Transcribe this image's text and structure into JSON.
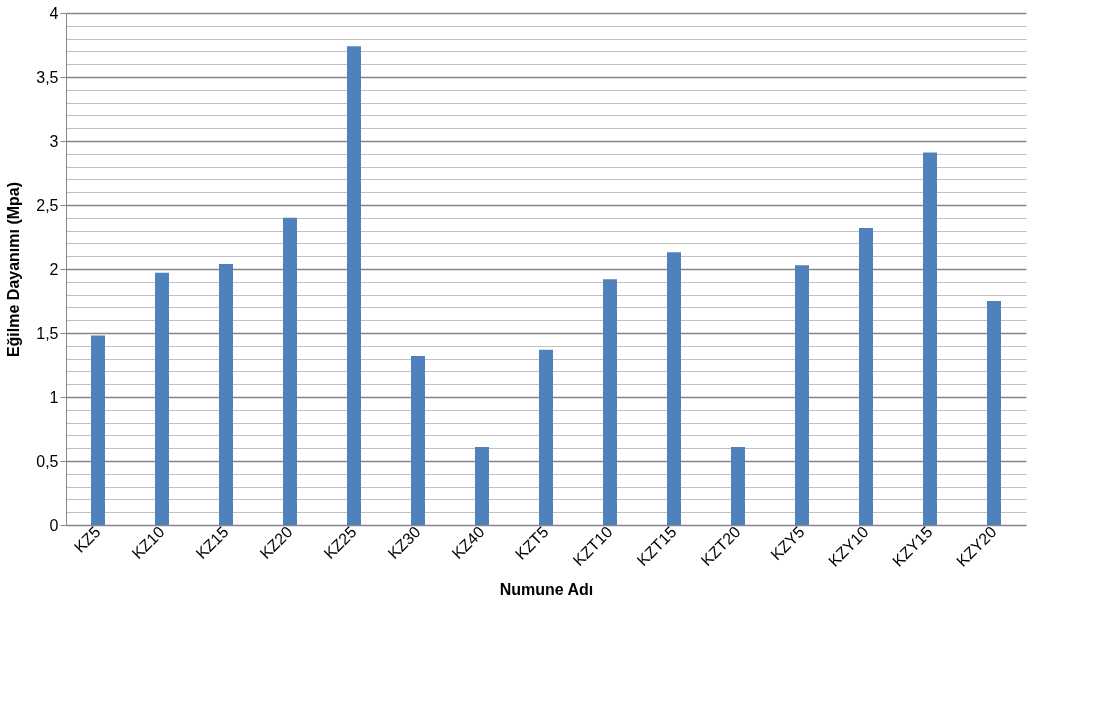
{
  "chart_data": {
    "type": "bar",
    "xlabel": "Numune Adı",
    "ylabel": "Eğilme Dayanımı (Mpa)",
    "categories": [
      "KZ5",
      "KZ10",
      "KZ15",
      "KZ20",
      "KZ25",
      "KZ30",
      "KZ40",
      "KZT5",
      "KZT10",
      "KZT15",
      "KZT20",
      "KZY5",
      "KZY10",
      "KZY15",
      "KZY20"
    ],
    "values": [
      1.48,
      1.97,
      2.04,
      2.4,
      3.74,
      1.32,
      0.61,
      1.37,
      1.92,
      2.13,
      0.61,
      2.03,
      2.32,
      2.91,
      1.75
    ],
    "color": "#4f81bd",
    "ylim": [
      0,
      4
    ],
    "yticks": [
      0,
      {
        "value": 0.1,
        "label": null
      },
      {
        "value": 0.2,
        "label": null
      },
      {
        "value": 0.3,
        "label": null
      },
      {
        "value": 0.4,
        "label": null
      },
      {
        "value": 0.5,
        "label": "0,5"
      },
      {
        "value": 0.6,
        "label": null
      },
      {
        "value": 0.7,
        "label": null
      },
      {
        "value": 0.8,
        "label": null
      },
      {
        "value": 0.9,
        "label": null
      },
      1,
      {
        "value": 1.1,
        "label": null
      },
      {
        "value": 1.2,
        "label": null
      },
      {
        "value": 1.3,
        "label": null
      },
      {
        "value": 1.4,
        "label": null
      },
      {
        "value": 1.5,
        "label": "1,5"
      },
      {
        "value": 1.6,
        "label": null
      },
      {
        "value": 1.7,
        "label": null
      },
      {
        "value": 1.8,
        "label": null
      },
      {
        "value": 1.9,
        "label": null
      },
      2,
      {
        "value": 2.1,
        "label": null
      },
      {
        "value": 2.2,
        "label": null
      },
      {
        "value": 2.3,
        "label": null
      },
      {
        "value": 2.4,
        "label": null
      },
      {
        "value": 2.5,
        "label": "2,5"
      },
      {
        "value": 2.6,
        "label": null
      },
      {
        "value": 2.7,
        "label": null
      },
      {
        "value": 2.8,
        "label": null
      },
      {
        "value": 2.9,
        "label": null
      },
      3,
      {
        "value": 3.1,
        "label": null
      },
      {
        "value": 3.2,
        "label": null
      },
      {
        "value": 3.3,
        "label": null
      },
      {
        "value": 3.4,
        "label": null
      },
      {
        "value": 3.5,
        "label": "3,5"
      },
      {
        "value": 3.6,
        "label": null
      },
      {
        "value": 3.7,
        "label": null
      },
      {
        "value": 3.8,
        "label": null
      },
      {
        "value": 3.9,
        "label": null
      },
      4
    ],
    "grid": "y"
  }
}
